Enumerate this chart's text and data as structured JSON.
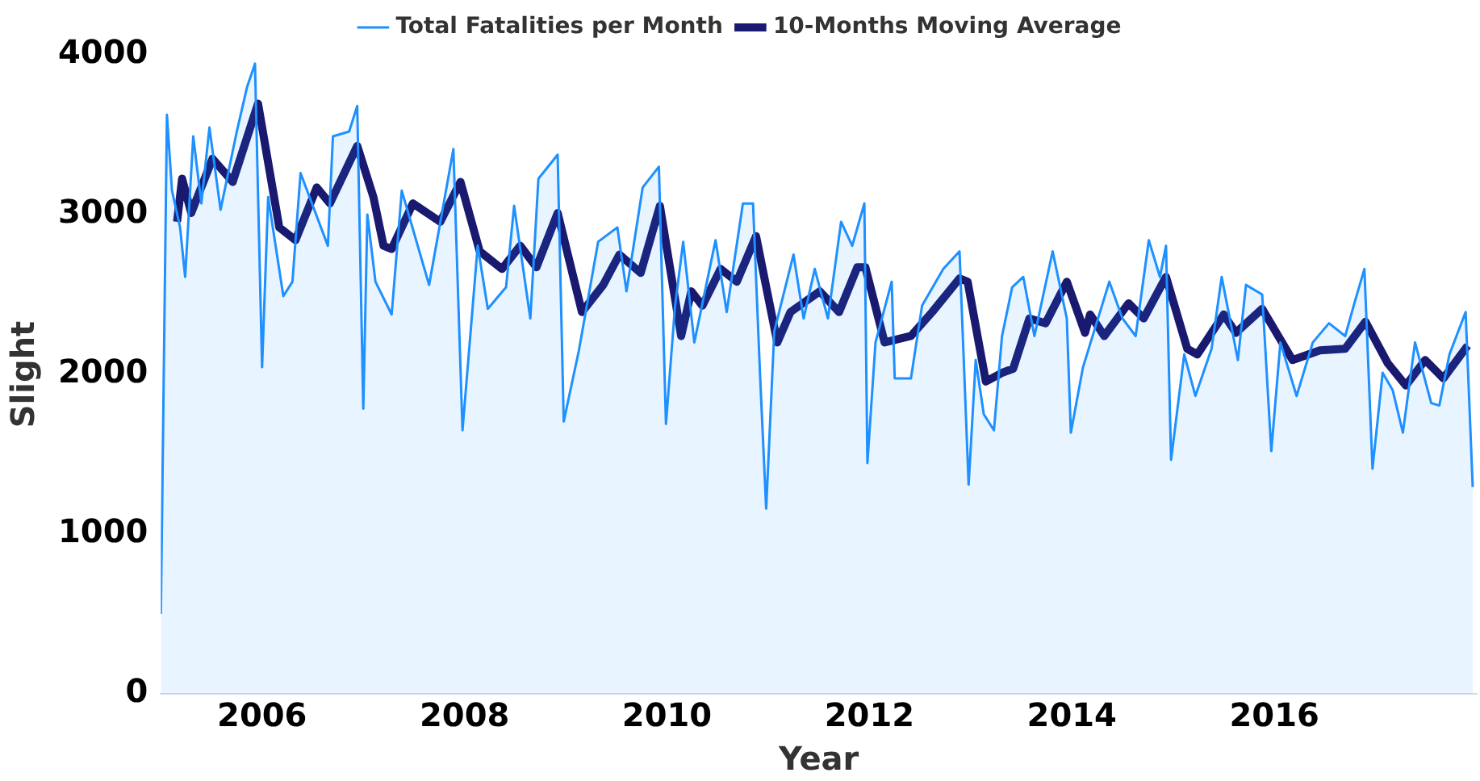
{
  "chart_data": {
    "type": "line",
    "xlabel": "Year",
    "ylabel": "Slight",
    "xlim": [
      2005,
      2018
    ],
    "ylim": [
      0,
      4000
    ],
    "xticks": [
      2006,
      2008,
      2010,
      2012,
      2014,
      2016
    ],
    "yticks": [
      0,
      1000,
      2000,
      3000,
      4000
    ],
    "grid": false,
    "legend": "top",
    "marker": "none",
    "line_style": "solid",
    "series": [
      {
        "name": "Total Fatalities per Month",
        "type": "area",
        "color": "#1e90ff",
        "x": [
          2005.0,
          2005.06,
          2005.11,
          2005.19,
          2005.24,
          2005.32,
          2005.4,
          2005.48,
          2005.59,
          2005.75,
          2005.85,
          2005.93,
          2006.0,
          2006.06,
          2006.21,
          2006.3,
          2006.38,
          2006.65,
          2006.7,
          2006.86,
          2006.94,
          2007.0,
          2007.04,
          2007.12,
          2007.28,
          2007.38,
          2007.65,
          2007.89,
          2007.98,
          2008.13,
          2008.23,
          2008.41,
          2008.49,
          2008.65,
          2008.73,
          2008.92,
          2008.98,
          2009.13,
          2009.32,
          2009.51,
          2009.6,
          2009.76,
          2009.92,
          2009.99,
          2010.08,
          2010.16,
          2010.27,
          2010.48,
          2010.59,
          2010.75,
          2010.85,
          2010.92,
          2010.98,
          2011.06,
          2011.25,
          2011.35,
          2011.46,
          2011.59,
          2011.72,
          2011.83,
          2011.95,
          2011.98,
          2012.06,
          2012.22,
          2012.25,
          2012.41,
          2012.52,
          2012.73,
          2012.89,
          2012.98,
          2013.05,
          2013.13,
          2013.23,
          2013.31,
          2013.41,
          2013.52,
          2013.63,
          2013.81,
          2013.95,
          2013.99,
          2014.11,
          2014.37,
          2014.5,
          2014.63,
          2014.76,
          2014.87,
          2014.93,
          2014.98,
          2015.11,
          2015.22,
          2015.38,
          2015.48,
          2015.64,
          2015.72,
          2015.88,
          2015.97,
          2016.06,
          2016.22,
          2016.38,
          2016.54,
          2016.7,
          2016.8,
          2016.89,
          2016.97,
          2017.07,
          2017.17,
          2017.27,
          2017.39,
          2017.55,
          2017.63,
          2017.73,
          2017.89,
          2017.96
        ],
        "values": [
          500,
          3625,
          3150,
          2920,
          2610,
          3490,
          3070,
          3545,
          3030,
          3520,
          3795,
          3945,
          2045,
          3110,
          2490,
          2580,
          3260,
          2805,
          3490,
          3520,
          3680,
          1785,
          3000,
          2580,
          2375,
          3150,
          2560,
          3410,
          1650,
          2805,
          2410,
          2545,
          3055,
          2350,
          3225,
          3375,
          1705,
          2150,
          2830,
          2920,
          2520,
          3170,
          3300,
          1690,
          2430,
          2830,
          2200,
          2840,
          2390,
          3070,
          3070,
          1990,
          1160,
          2270,
          2750,
          2350,
          2660,
          2350,
          2955,
          2805,
          3070,
          1445,
          2200,
          2580,
          1975,
          1975,
          2430,
          2660,
          2770,
          1310,
          2090,
          1750,
          1650,
          2240,
          2545,
          2610,
          2240,
          2770,
          2350,
          1635,
          2045,
          2580,
          2350,
          2240,
          2840,
          2610,
          2805,
          1465,
          2125,
          1865,
          2160,
          2610,
          2090,
          2560,
          2500,
          1520,
          2200,
          1865,
          2200,
          2320,
          2240,
          2465,
          2660,
          1410,
          2010,
          1900,
          1635,
          2200,
          1820,
          1805,
          2125,
          2390,
          1295
        ]
      },
      {
        "name": "10-Months Moving Average",
        "color": "#191970",
        "x": [
          2005.16,
          2005.21,
          2005.3,
          2005.51,
          2005.71,
          2005.96,
          2006.17,
          2006.33,
          2006.54,
          2006.67,
          2006.94,
          2007.1,
          2007.2,
          2007.28,
          2007.49,
          2007.76,
          2007.96,
          2008.15,
          2008.37,
          2008.55,
          2008.71,
          2008.92,
          2009.16,
          2009.37,
          2009.53,
          2009.74,
          2009.93,
          2010.14,
          2010.24,
          2010.35,
          2010.53,
          2010.69,
          2010.88,
          2011.09,
          2011.22,
          2011.51,
          2011.7,
          2011.88,
          2011.96,
          2012.15,
          2012.41,
          2012.62,
          2012.89,
          2012.97,
          2013.15,
          2013.31,
          2013.42,
          2013.58,
          2013.74,
          2013.95,
          2014.13,
          2014.18,
          2014.32,
          2014.56,
          2014.71,
          2014.93,
          2015.14,
          2015.24,
          2015.5,
          2015.62,
          2015.88,
          2016.18,
          2016.45,
          2016.7,
          2016.9,
          2017.12,
          2017.3,
          2017.49,
          2017.67,
          2017.91
        ],
        "values": [
          2955,
          3225,
          3010,
          3350,
          3205,
          3695,
          2920,
          2840,
          3170,
          3070,
          3430,
          3110,
          2805,
          2785,
          3070,
          2955,
          3205,
          2770,
          2660,
          2805,
          2670,
          3010,
          2390,
          2560,
          2750,
          2635,
          3055,
          2240,
          2520,
          2430,
          2660,
          2580,
          2865,
          2200,
          2390,
          2520,
          2390,
          2670,
          2670,
          2200,
          2240,
          2390,
          2600,
          2580,
          1955,
          2010,
          2035,
          2350,
          2320,
          2580,
          2260,
          2375,
          2240,
          2445,
          2350,
          2610,
          2160,
          2125,
          2375,
          2260,
          2410,
          2090,
          2150,
          2160,
          2330,
          2070,
          1930,
          2090,
          1975,
          2180
        ]
      }
    ]
  }
}
